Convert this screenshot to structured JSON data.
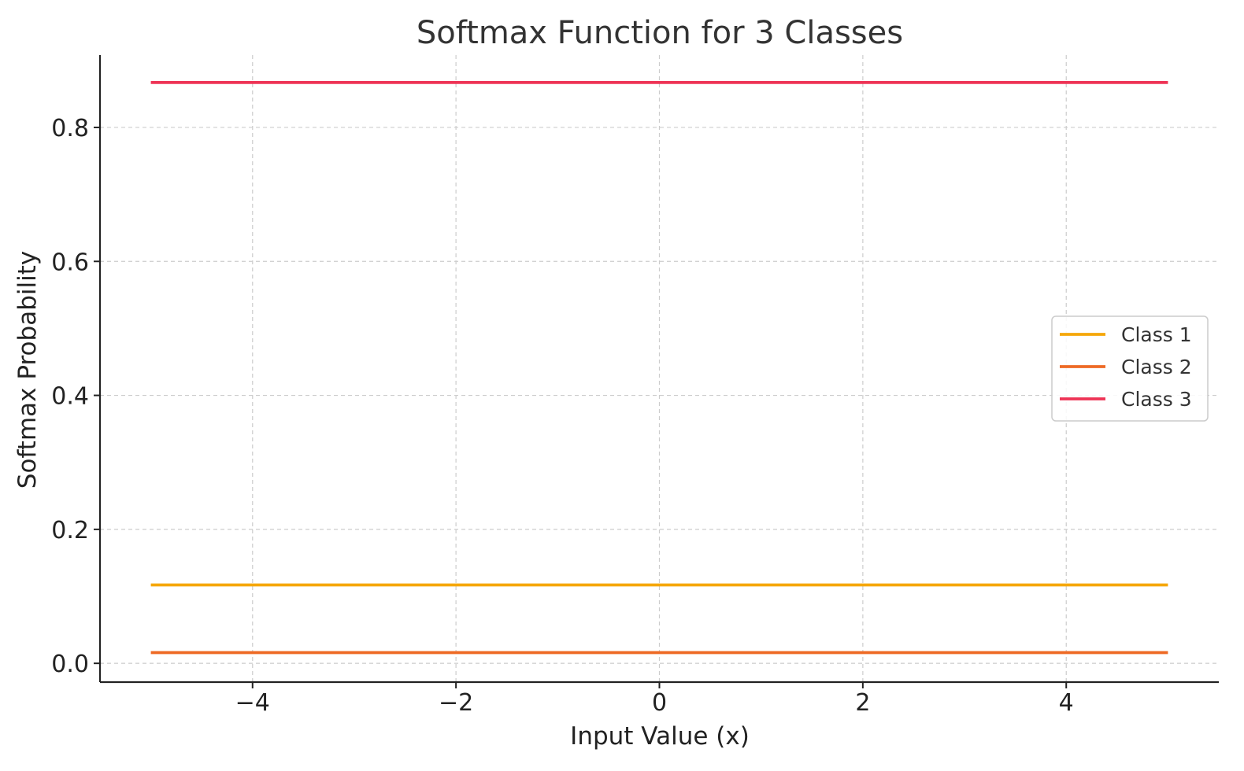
{
  "chart_data": {
    "type": "line",
    "title": "Softmax Function for 3 Classes",
    "xlabel": "Input Value (x)",
    "ylabel": "Softmax Probability",
    "x": [
      -5,
      5
    ],
    "xlim": [
      -5.5,
      5.5
    ],
    "ylim": [
      -0.028,
      0.908
    ],
    "xticks": [
      -4,
      -2,
      0,
      2,
      4
    ],
    "xtick_labels": [
      "−4",
      "−2",
      "0",
      "2",
      "4"
    ],
    "yticks": [
      0.0,
      0.2,
      0.4,
      0.6,
      0.8
    ],
    "ytick_labels": [
      "0.0",
      "0.2",
      "0.4",
      "0.6",
      "0.8"
    ],
    "grid": true,
    "legend_position": "center-right",
    "series": [
      {
        "name": "Class 1",
        "values": [
          0.117,
          0.117
        ],
        "color": "#F5A70A"
      },
      {
        "name": "Class 2",
        "values": [
          0.016,
          0.016
        ],
        "color": "#EE6A25"
      },
      {
        "name": "Class 3",
        "values": [
          0.867,
          0.867
        ],
        "color": "#EE3355"
      }
    ]
  }
}
